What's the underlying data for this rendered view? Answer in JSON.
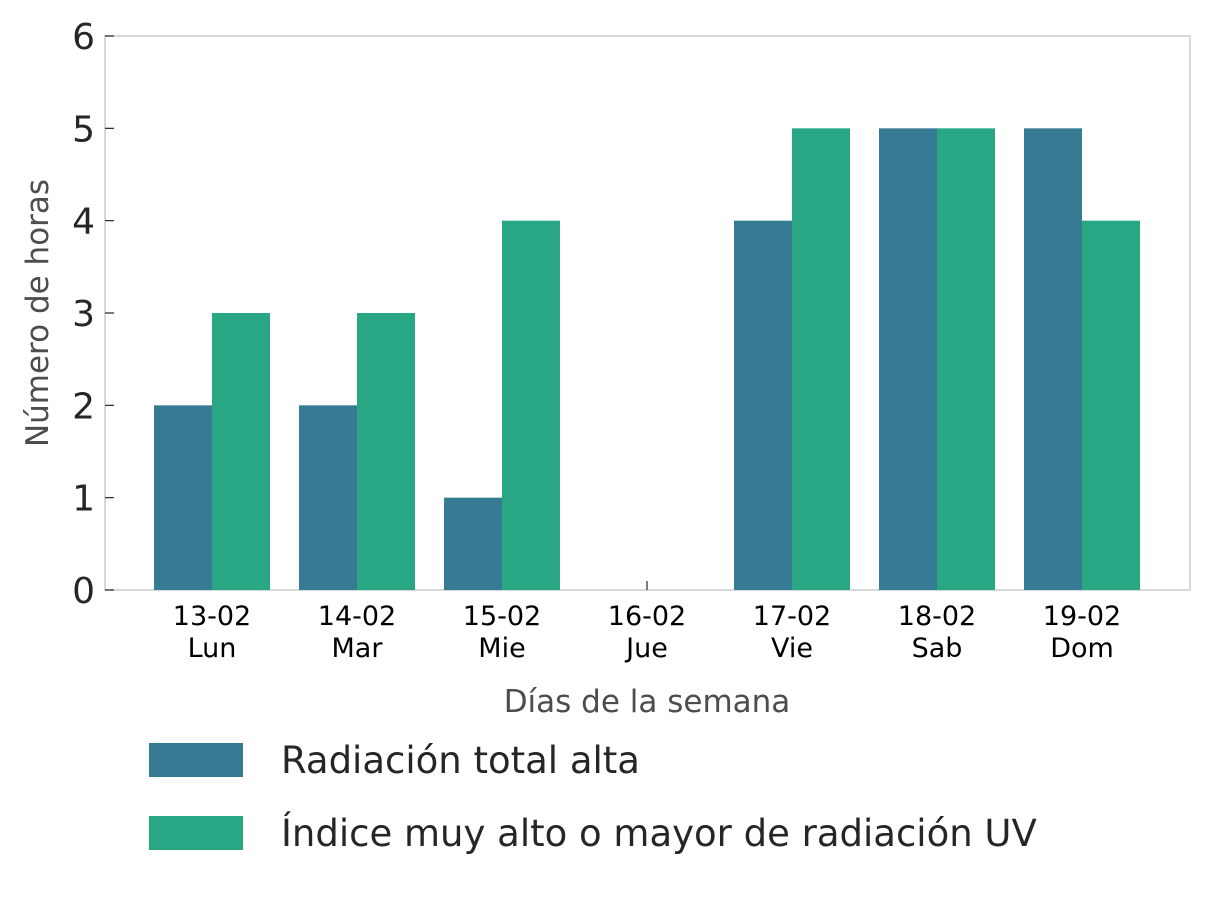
{
  "chart_data": {
    "type": "bar",
    "categories": [
      [
        "13-02",
        "Lun"
      ],
      [
        "14-02",
        "Mar"
      ],
      [
        "15-02",
        "Mie"
      ],
      [
        "16-02",
        "Jue"
      ],
      [
        "17-02",
        "Vie"
      ],
      [
        "18-02",
        "Sab"
      ],
      [
        "19-02",
        "Dom"
      ]
    ],
    "series": [
      {
        "name": "Radiación total alta",
        "color": "#367a93",
        "values": [
          2,
          2,
          1,
          0,
          4,
          5,
          5
        ]
      },
      {
        "name": "Índice muy alto o mayor de radiación UV",
        "color": "#29a784",
        "values": [
          3,
          3,
          4,
          0,
          5,
          5,
          4
        ]
      }
    ],
    "xlabel": "Días de la semana",
    "ylabel": "Número de horas",
    "ylim": [
      0,
      6
    ],
    "yticks": [
      0,
      1,
      2,
      3,
      4,
      5,
      6
    ],
    "grid": false,
    "legend_position": "bottom"
  }
}
